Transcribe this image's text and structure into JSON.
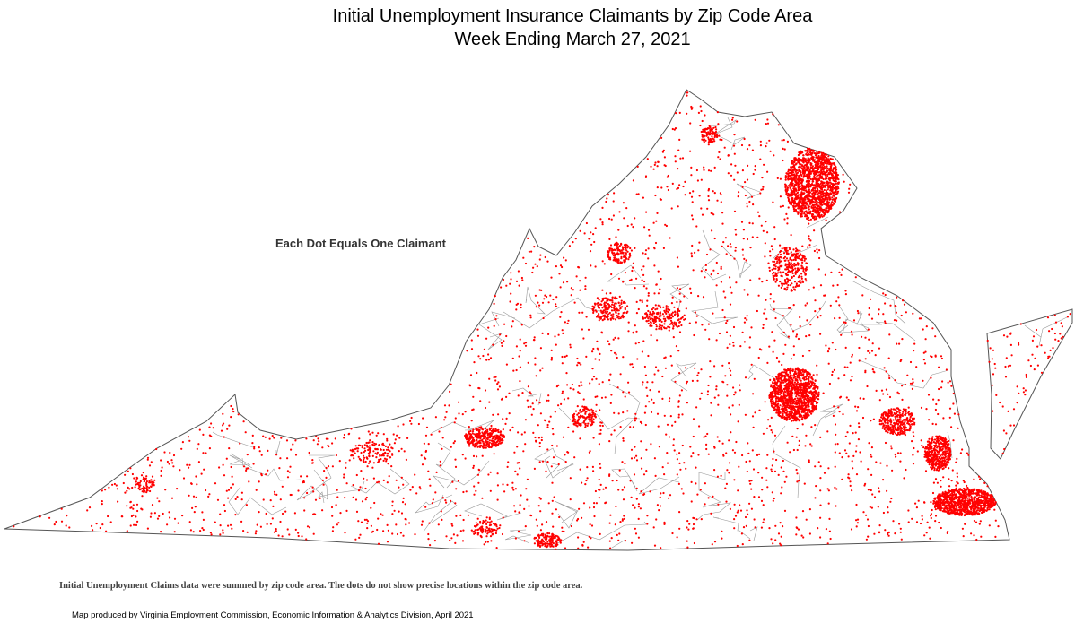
{
  "header": {
    "title_line1": "Initial Unemployment Insurance Claimants by Zip Code Area",
    "title_line2": "Week Ending March 27, 2021"
  },
  "legend": {
    "note": "Each Dot Equals One Claimant"
  },
  "footer": {
    "disclaimer": "Initial Unemployment Claims data were summed by zip code area. The dots do not show precise locations within the zip code area.",
    "credit": "Map produced by Virginia Employment Commission, Economic Information & Analytics Division,  April 2021"
  }
}
